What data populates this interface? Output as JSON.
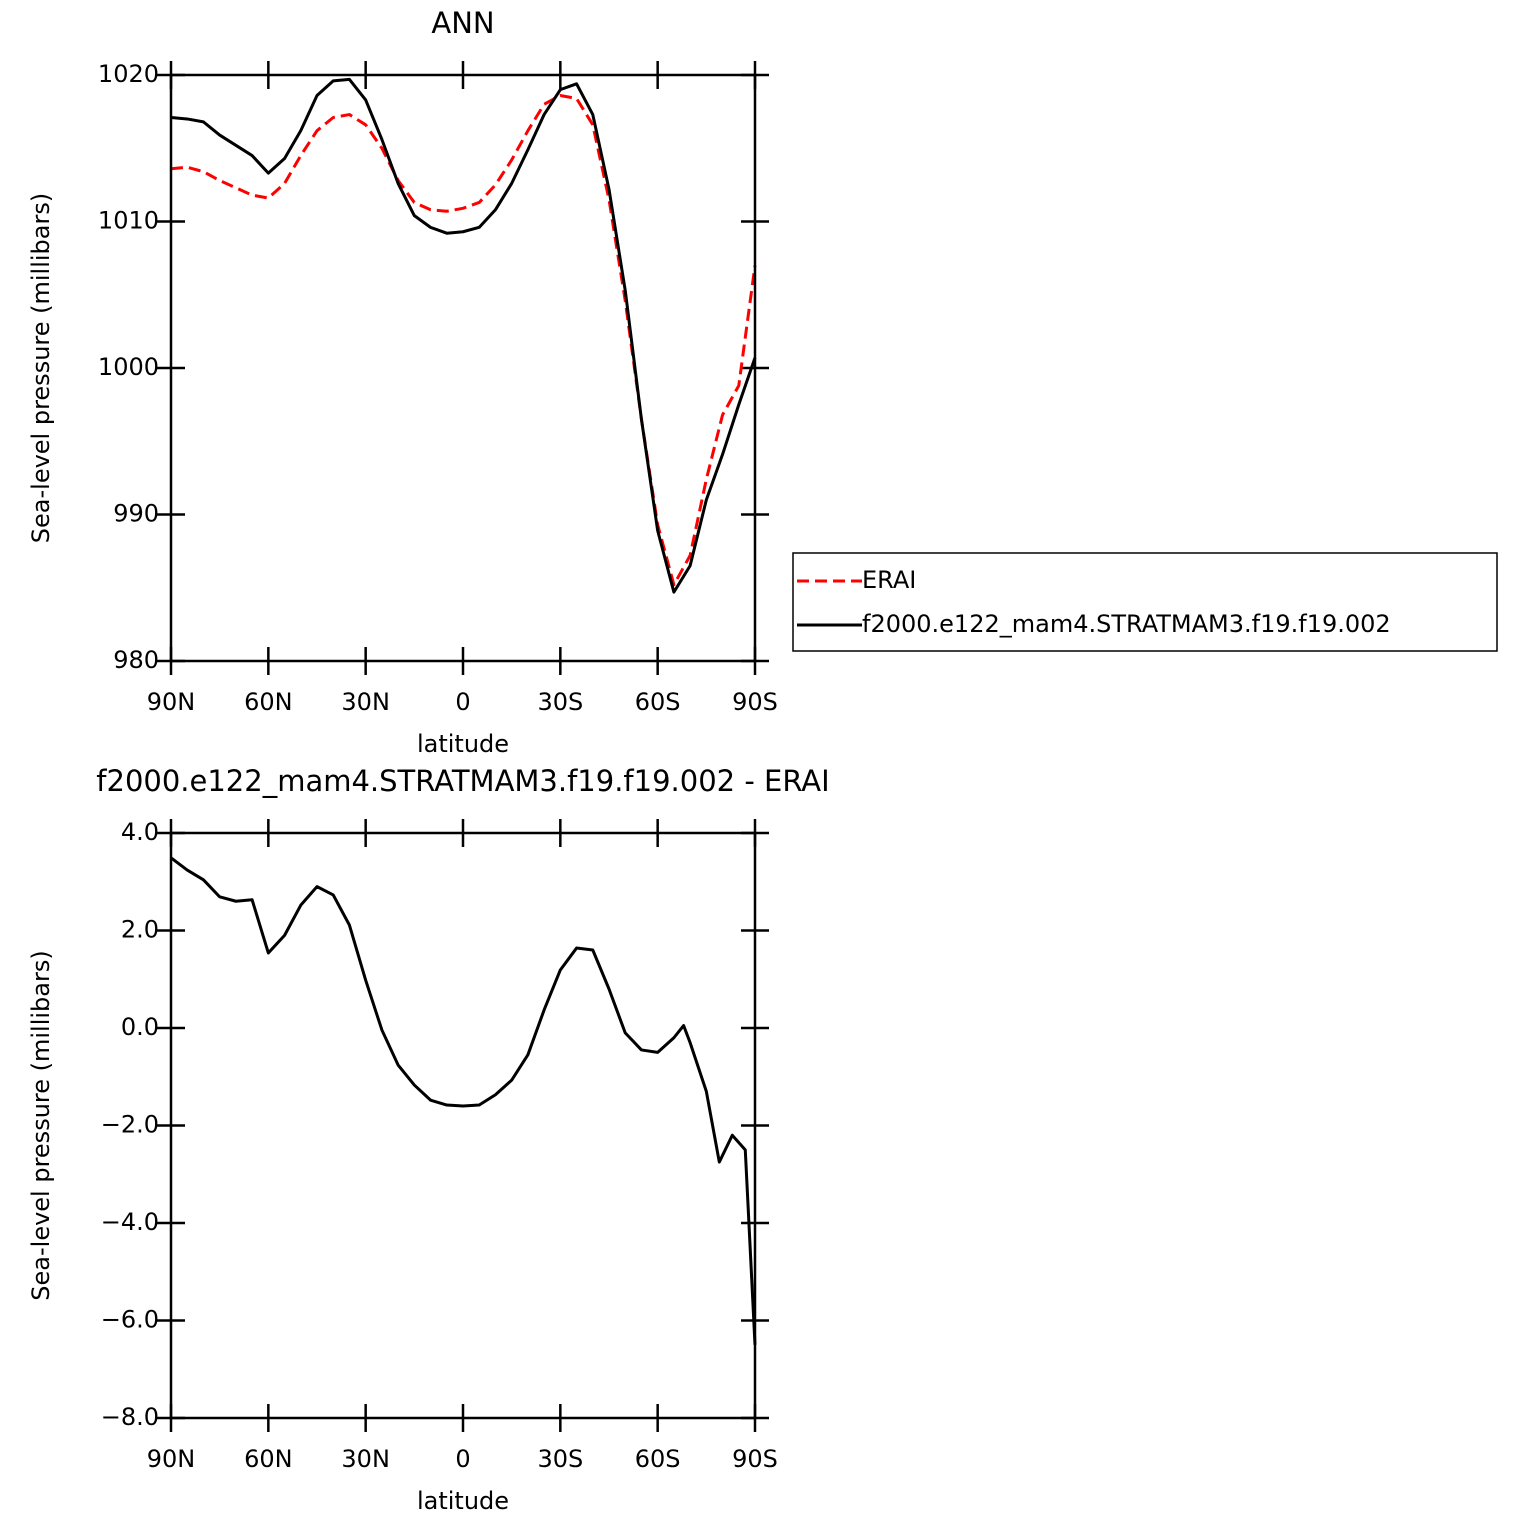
{
  "chart_data": [
    {
      "type": "line",
      "title": "ANN",
      "xlabel": "latitude",
      "ylabel": "Sea-level pressure (millibars)",
      "x": [
        90,
        85,
        80,
        75,
        70,
        65,
        60,
        55,
        50,
        45,
        40,
        35,
        30,
        25,
        20,
        15,
        10,
        5,
        0,
        -5,
        -10,
        -15,
        -20,
        -25,
        -30,
        -35,
        -40,
        -45,
        -50,
        -55,
        -60,
        -65,
        -70,
        -75,
        -80,
        -85,
        -90
      ],
      "series": [
        {
          "name": "ERAI",
          "color": "#ff0000",
          "linestyle": "dashed",
          "values": [
            1013.6,
            1013.7,
            1013.4,
            1012.8,
            1012.3,
            1011.8,
            1011.6,
            1012.6,
            1014.5,
            1016.2,
            1017.1,
            1017.3,
            1016.6,
            1015.0,
            1012.8,
            1011.3,
            1010.8,
            1010.7,
            1010.9,
            1011.3,
            1012.5,
            1014.2,
            1016.2,
            1018.0,
            1018.6,
            1018.4,
            1016.6,
            1011.5,
            1004.6,
            996.5,
            989.3,
            985.2,
            987.2,
            992.4,
            996.8,
            998.8,
            1007.0
          ]
        },
        {
          "name": "f2000.e122_mam4.STRATMAM3.f19.f19.002",
          "color": "#000000",
          "linestyle": "solid",
          "values": [
            1017.1,
            1017.0,
            1016.8,
            1015.9,
            1015.2,
            1014.5,
            1013.3,
            1014.3,
            1016.2,
            1018.6,
            1019.6,
            1019.7,
            1018.3,
            1015.6,
            1012.6,
            1010.4,
            1009.6,
            1009.2,
            1009.3,
            1009.6,
            1010.8,
            1012.6,
            1014.9,
            1017.3,
            1019.0,
            1019.4,
            1017.3,
            1012.2,
            1005.3,
            996.5,
            988.9,
            984.7,
            986.5,
            991.0,
            994.1,
            997.5,
            1000.7
          ]
        }
      ],
      "xlim": [
        90,
        -90
      ],
      "xticks": [
        {
          "value": 90,
          "label": "90N"
        },
        {
          "value": 60,
          "label": "60N"
        },
        {
          "value": 30,
          "label": "30N"
        },
        0,
        {
          "value": -30,
          "label": "30S"
        },
        {
          "value": -60,
          "label": "60S"
        },
        {
          "value": -90,
          "label": "90S"
        }
      ],
      "ylim": [
        980,
        1020
      ],
      "yticks": [
        980,
        990,
        1000,
        1010,
        1020
      ],
      "legend": "right"
    },
    {
      "type": "line",
      "title": "f2000.e122_mam4.STRATMAM3.f19.f19.002 - ERAI",
      "xlabel": "latitude",
      "ylabel": "Sea-level pressure (millibars)",
      "x": [
        90,
        85,
        80,
        75,
        70,
        65,
        60,
        55,
        50,
        45,
        40,
        35,
        30,
        25,
        20,
        15,
        10,
        5,
        0,
        -5,
        -10,
        -15,
        -20,
        -25,
        -30,
        -35,
        -40,
        -45,
        -50,
        -55,
        -60,
        -65,
        -68,
        -70,
        -75,
        -79,
        -83,
        -87,
        -90
      ],
      "series": [
        {
          "color": "#000000",
          "linestyle": "solid",
          "values": [
            3.49,
            3.24,
            3.04,
            2.69,
            2.6,
            2.63,
            1.54,
            1.9,
            2.52,
            2.9,
            2.73,
            2.11,
            0.98,
            -0.04,
            -0.76,
            -1.17,
            -1.48,
            -1.58,
            -1.6,
            -1.58,
            -1.37,
            -1.07,
            -0.55,
            0.37,
            1.19,
            1.64,
            1.6,
            0.8,
            -0.1,
            -0.45,
            -0.5,
            -0.2,
            0.05,
            -0.3,
            -1.3,
            -2.75,
            -2.2,
            -2.5,
            -6.5
          ]
        }
      ],
      "xlim": [
        90,
        -90
      ],
      "xticks": [
        {
          "value": 90,
          "label": "90N"
        },
        {
          "value": 60,
          "label": "60N"
        },
        {
          "value": 30,
          "label": "30N"
        },
        0,
        {
          "value": -30,
          "label": "30S"
        },
        {
          "value": -60,
          "label": "60S"
        },
        {
          "value": -90,
          "label": "90S"
        }
      ],
      "ylim": [
        -8,
        4
      ],
      "yticks": [
        {
          "value": -8,
          "label": "−8.0"
        },
        {
          "value": -6,
          "label": "−6.0"
        },
        {
          "value": -4,
          "label": "−4.0"
        },
        {
          "value": -2,
          "label": "−2.0"
        },
        {
          "value": 0,
          "label": "0.0"
        },
        {
          "value": 2,
          "label": "2.0"
        },
        {
          "value": 4,
          "label": "4.0"
        }
      ]
    }
  ]
}
